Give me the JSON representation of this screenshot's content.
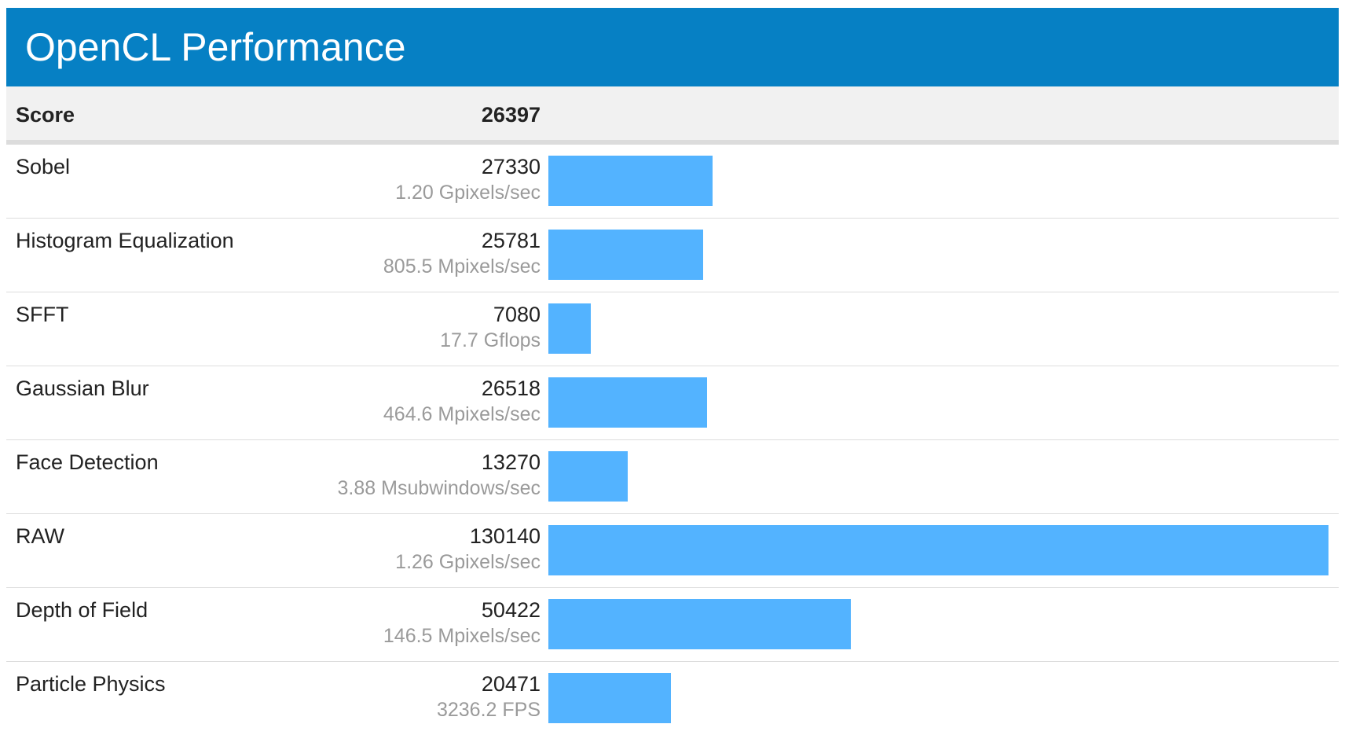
{
  "header": {
    "title": "OpenCL Performance"
  },
  "score": {
    "label": "Score",
    "value": "26397"
  },
  "colors": {
    "header": "#0680c4",
    "bar": "#53b3ff",
    "rate_text": "#9a9a9a"
  },
  "chart_data": {
    "type": "bar",
    "orientation": "horizontal",
    "title": "OpenCL Performance",
    "categories": [
      "Sobel",
      "Histogram Equalization",
      "SFFT",
      "Gaussian Blur",
      "Face Detection",
      "RAW",
      "Depth of Field",
      "Particle Physics"
    ],
    "values": [
      27330,
      25781,
      7080,
      26518,
      13270,
      130140,
      50422,
      20471
    ],
    "rates": [
      "1.20 Gpixels/sec",
      "805.5 Mpixels/sec",
      "17.7 Gflops",
      "464.6 Mpixels/sec",
      "3.88 Msubwindows/sec",
      "1.26 Gpixels/sec",
      "146.5 Mpixels/sec",
      "3236.2 FPS"
    ],
    "xlim": [
      0,
      130140
    ]
  }
}
